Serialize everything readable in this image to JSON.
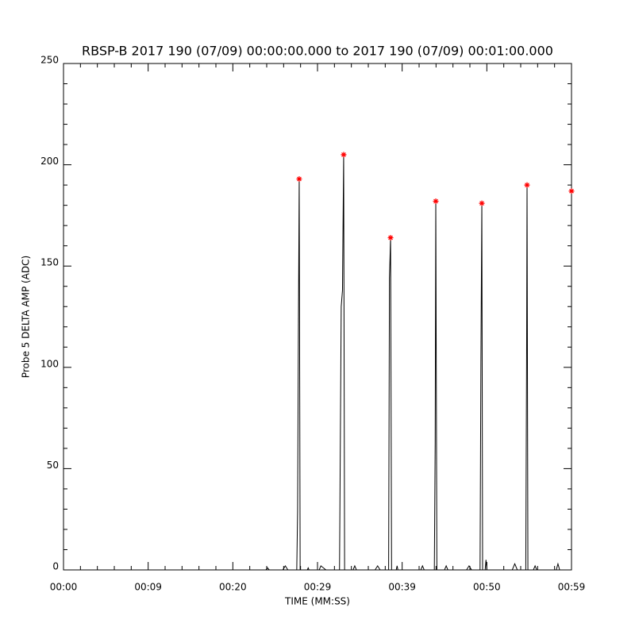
{
  "chart_data": {
    "type": "line",
    "title": "RBSP-B 2017 190 (07/09) 00:00:00.000 to 2017 190 (07/09) 00:01:00.000",
    "xlabel": "TIME (MM:SS)",
    "ylabel": "Probe 5 DELTA AMP (ADC)",
    "xlim": [
      0,
      60
    ],
    "xticks": [
      {
        "value": 0,
        "label": "00:00"
      },
      {
        "value": 10,
        "label": "00:09"
      },
      {
        "value": 20,
        "label": "00:20"
      },
      {
        "value": 30,
        "label": "00:29"
      },
      {
        "value": 40,
        "label": "00:39"
      },
      {
        "value": 50,
        "label": "00:50"
      },
      {
        "value": 60,
        "label": "00:59"
      }
    ],
    "ylim": [
      0,
      250
    ],
    "yticks": [
      0,
      50,
      100,
      150,
      200,
      250
    ],
    "series": [
      {
        "color": "#000000",
        "x": [
          0,
          23.9,
          24.1,
          24.3,
          25.9,
          26.2,
          26.5,
          27.55,
          27.65,
          27.75,
          27.84,
          27.95,
          28.8,
          28.9,
          29.0,
          30.2,
          30.4,
          31.0,
          32.6,
          32.8,
          32.95,
          33.09,
          33.2,
          34.2,
          34.4,
          34.6,
          36.8,
          37.1,
          37.4,
          38.4,
          38.5,
          38.63,
          38.75,
          39.3,
          39.4,
          39.5,
          42.2,
          42.4,
          42.6,
          43.8,
          43.9,
          43.97,
          44.1,
          45.0,
          45.2,
          45.4,
          47.6,
          47.9,
          48.2,
          49.2,
          49.3,
          49.41,
          49.5,
          49.8,
          49.9,
          50.0,
          53.0,
          53.3,
          53.6,
          54.6,
          54.7,
          54.75,
          54.85,
          55.5,
          55.7,
          55.9,
          58.2,
          58.4,
          58.6,
          60
        ],
        "values": [
          0,
          0,
          1,
          0,
          0,
          2,
          0,
          0,
          29,
          123,
          193,
          0,
          0,
          1,
          0,
          0,
          2,
          0,
          0,
          130,
          138,
          205,
          0,
          0,
          2,
          0,
          0,
          2,
          0,
          0,
          144,
          164,
          0,
          0,
          2,
          0,
          0,
          2,
          0,
          0,
          63,
          182,
          0,
          0,
          2,
          0,
          0,
          2,
          0,
          0,
          103,
          181,
          0,
          0,
          5,
          0,
          0,
          3,
          0,
          0,
          108,
          190,
          0,
          0,
          2,
          0,
          0,
          3,
          0,
          0
        ]
      },
      {
        "color": "#ff0000",
        "marker": "star",
        "x": [
          27.84,
          33.09,
          38.63,
          43.97,
          49.41,
          54.75,
          60
        ],
        "values": [
          193,
          205,
          164,
          182,
          181,
          190,
          187
        ]
      }
    ]
  }
}
